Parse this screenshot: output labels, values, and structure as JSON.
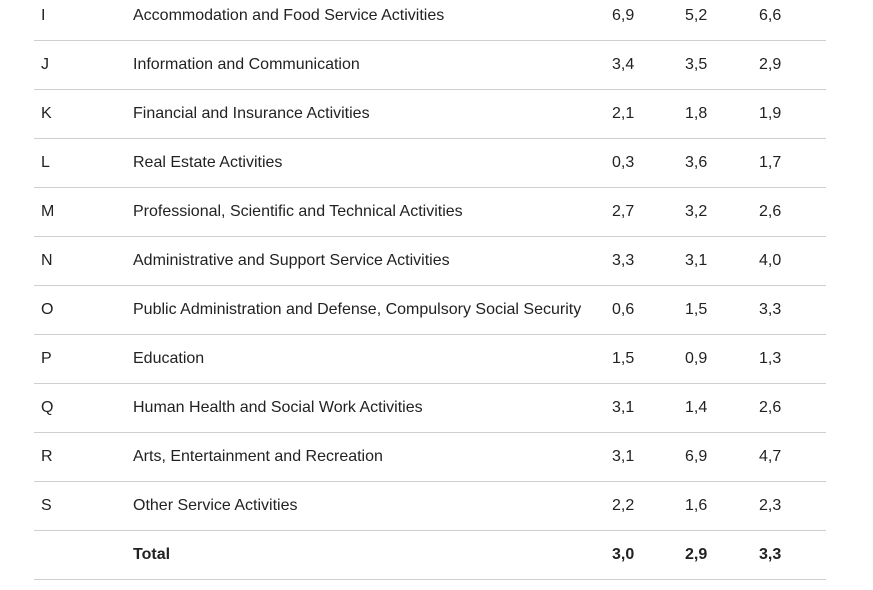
{
  "rows": [
    {
      "code": "I",
      "name": "Accommodation and Food Service Activities",
      "v1": "6,9",
      "v2": "5,2",
      "v3": "6,6"
    },
    {
      "code": "J",
      "name": "Information and Communication",
      "v1": "3,4",
      "v2": "3,5",
      "v3": "2,9"
    },
    {
      "code": "K",
      "name": "Financial and Insurance Activities",
      "v1": "2,1",
      "v2": "1,8",
      "v3": "1,9"
    },
    {
      "code": "L",
      "name": "Real Estate Activities",
      "v1": "0,3",
      "v2": "3,6",
      "v3": "1,7"
    },
    {
      "code": "M",
      "name": "Professional, Scientific and Technical Activities",
      "v1": "2,7",
      "v2": "3,2",
      "v3": "2,6"
    },
    {
      "code": "N",
      "name": "Administrative and Support Service Activities",
      "v1": "3,3",
      "v2": "3,1",
      "v3": "4,0"
    },
    {
      "code": "O",
      "name": "Public Administration and Defense, Compulsory Social Security",
      "v1": "0,6",
      "v2": "1,5",
      "v3": "3,3"
    },
    {
      "code": "P",
      "name": "Education",
      "v1": "1,5",
      "v2": "0,9",
      "v3": "1,3"
    },
    {
      "code": "Q",
      "name": "Human Health and Social Work Activities",
      "v1": "3,1",
      "v2": "1,4",
      "v3": "2,6"
    },
    {
      "code": "R",
      "name": "Arts, Entertainment and Recreation",
      "v1": "3,1",
      "v2": "6,9",
      "v3": "4,7"
    },
    {
      "code": "S",
      "name": "Other Service Activities",
      "v1": "2,2",
      "v2": "1,6",
      "v3": "2,3"
    }
  ],
  "total": {
    "code": "",
    "name": "Total",
    "v1": "3,0",
    "v2": "2,9",
    "v3": "3,3"
  }
}
